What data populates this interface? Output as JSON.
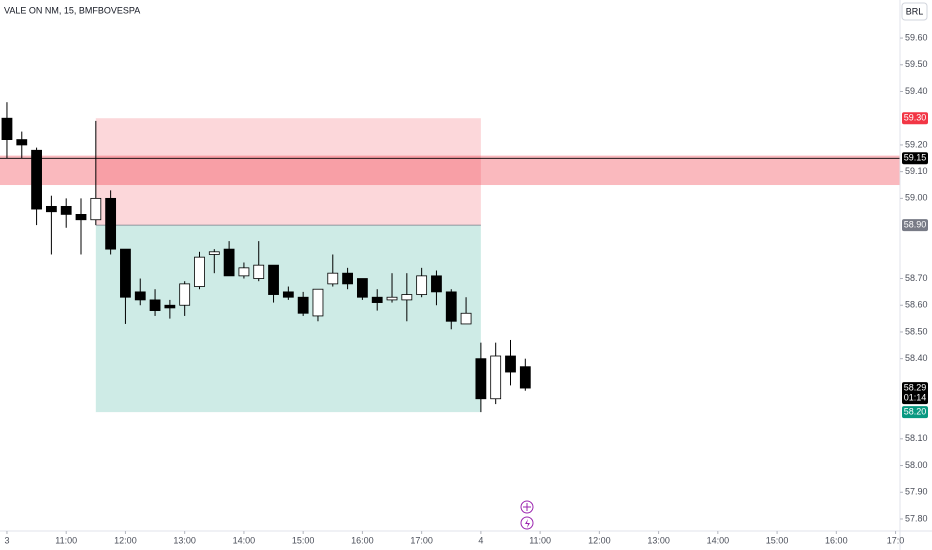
{
  "chart_data": {
    "type": "candlestick",
    "title": "VALE ON NM, 15, BMFBOVESPA",
    "currency": "BRL",
    "open": [
      59.3,
      59.22,
      59.18,
      58.97,
      58.97,
      58.94,
      58.92,
      59.0,
      58.81,
      58.65,
      58.62,
      58.6,
      58.6,
      58.67,
      58.79,
      58.81,
      58.71,
      58.7,
      58.75,
      58.65,
      58.63,
      58.56,
      58.68,
      58.72,
      58.7,
      58.63,
      58.62,
      58.62,
      58.64,
      58.71,
      58.65,
      58.53,
      58.4,
      58.25,
      58.41,
      58.37
    ],
    "high": [
      59.36,
      59.25,
      59.19,
      59.01,
      59.0,
      59.0,
      59.29,
      59.03,
      58.81,
      58.7,
      58.66,
      58.62,
      58.69,
      58.8,
      58.81,
      58.84,
      58.76,
      58.84,
      58.75,
      58.67,
      58.65,
      58.66,
      58.79,
      58.74,
      58.7,
      58.66,
      58.72,
      58.72,
      58.74,
      58.73,
      58.66,
      58.63,
      58.46,
      58.46,
      58.47,
      58.4
    ],
    "low": [
      59.15,
      59.15,
      58.9,
      58.79,
      58.89,
      58.79,
      58.9,
      58.79,
      58.53,
      58.6,
      58.56,
      58.55,
      58.56,
      58.66,
      58.72,
      58.71,
      58.7,
      58.69,
      58.61,
      58.62,
      58.56,
      58.54,
      58.67,
      58.66,
      58.62,
      58.58,
      58.61,
      58.54,
      58.63,
      58.6,
      58.51,
      58.53,
      58.2,
      58.23,
      58.3,
      58.28
    ],
    "close": [
      59.22,
      59.2,
      58.96,
      58.95,
      58.94,
      58.92,
      59.0,
      58.81,
      58.63,
      58.62,
      58.58,
      58.59,
      58.68,
      58.78,
      58.8,
      58.71,
      58.74,
      58.75,
      58.64,
      58.63,
      58.57,
      58.66,
      58.72,
      58.68,
      58.63,
      58.61,
      58.63,
      58.64,
      58.71,
      58.65,
      58.54,
      58.57,
      58.25,
      58.41,
      58.35,
      58.29
    ],
    "colors": {
      "up": "#ffffff",
      "down": "#000000",
      "outline": "#000000"
    },
    "xlim": [
      -0.47,
      60.3
    ],
    "xticks": [
      {
        "value": 0,
        "label": "3"
      },
      {
        "value": 4,
        "label": "11:00"
      },
      {
        "value": 8,
        "label": "12:00"
      },
      {
        "value": 12,
        "label": "13:00"
      },
      {
        "value": 16,
        "label": "14:00"
      },
      {
        "value": 20,
        "label": "15:00"
      },
      {
        "value": 24,
        "label": "16:00"
      },
      {
        "value": 28,
        "label": "17:00"
      },
      {
        "value": 32,
        "label": "4"
      },
      {
        "value": 36,
        "label": "11:00"
      },
      {
        "value": 40,
        "label": "12:00"
      },
      {
        "value": 44,
        "label": "13:00"
      },
      {
        "value": 48,
        "label": "14:00"
      },
      {
        "value": 52,
        "label": "15:00"
      },
      {
        "value": 56,
        "label": "16:00"
      },
      {
        "value": 60,
        "label": "17:0"
      }
    ],
    "ylim": [
      57.755,
      59.7425
    ],
    "yticks": [
      {
        "value": 59.6,
        "label": "59.60"
      },
      {
        "value": 59.5,
        "label": "59.50"
      },
      {
        "value": 59.4,
        "label": "59.40"
      },
      {
        "value": 59.2,
        "label": "59.20"
      },
      {
        "value": 59.1,
        "label": "59.10"
      },
      {
        "value": 59.0,
        "label": "59.00"
      },
      {
        "value": 58.7,
        "label": "58.70"
      },
      {
        "value": 58.6,
        "label": "58.60"
      },
      {
        "value": 58.5,
        "label": "58.50"
      },
      {
        "value": 58.4,
        "label": "58.40"
      },
      {
        "value": 58.1,
        "label": "58.10"
      },
      {
        "value": 58.0,
        "label": "58.00"
      },
      {
        "value": 57.9,
        "label": "57.90"
      },
      {
        "value": 57.8,
        "label": "57.80"
      }
    ],
    "position": {
      "start": 6,
      "end": 32,
      "stop": {
        "value": 59.3,
        "label": "59.30",
        "color": "#f23645"
      },
      "entry": {
        "value": 58.9,
        "label": "58.90",
        "color": "#787b86"
      },
      "target": {
        "value": 58.2,
        "label": "58.20",
        "color": "#089981"
      }
    },
    "hline": {
      "value": 59.15,
      "label": "59.15",
      "color": "#000000"
    },
    "zone": {
      "values": [
        59.05,
        59.16
      ],
      "color": "#f23645"
    },
    "last": {
      "value": 58.29,
      "label": "58.29",
      "countdown": "01:14",
      "color": "#000000"
    }
  }
}
